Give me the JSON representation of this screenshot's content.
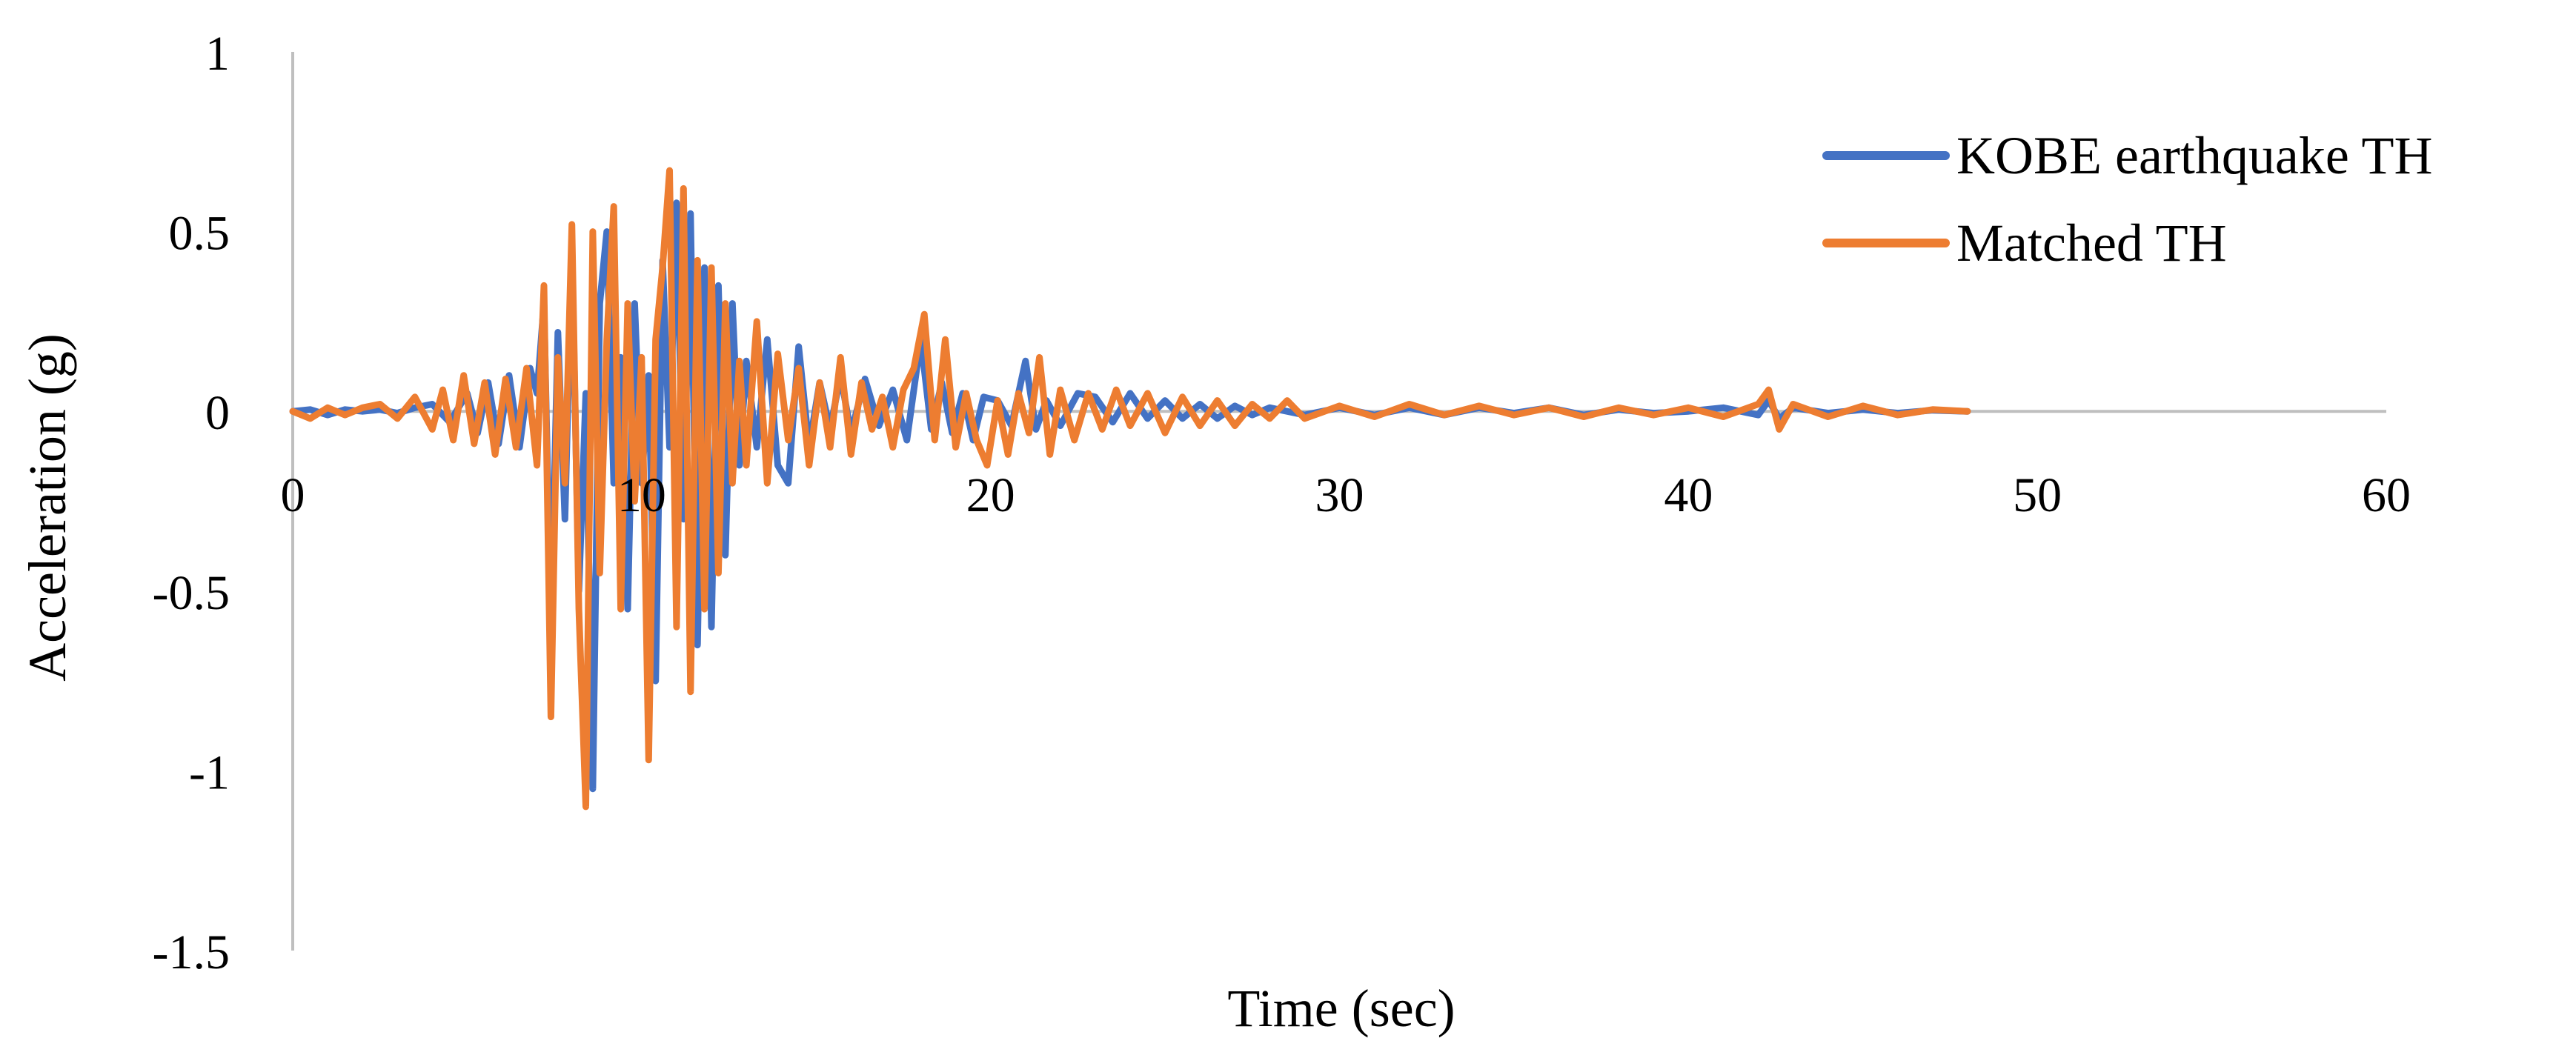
{
  "chart_data": {
    "type": "line",
    "title": "",
    "xlabel": "Time (sec)",
    "ylabel": "Acceleration (g)",
    "xlim": [
      0,
      60
    ],
    "ylim": [
      -1.5,
      1
    ],
    "x_ticks": [
      "0",
      "10",
      "20",
      "30",
      "40",
      "50",
      "60"
    ],
    "y_ticks": [
      "1",
      "0.5",
      "0",
      "-0.5",
      "-1",
      "-1.5"
    ],
    "grid": false,
    "legend_position": "top-right",
    "colors": {
      "kobe": "#4472C4",
      "matched": "#ED7D31",
      "axis": "#bfbfbf"
    },
    "series": [
      {
        "name": "KOBE earthquake TH",
        "x": [
          0,
          0.5,
          1,
          1.5,
          2,
          2.5,
          3,
          3.5,
          4,
          4.5,
          5,
          5.3,
          5.6,
          5.9,
          6.2,
          6.5,
          6.8,
          7.0,
          7.2,
          7.4,
          7.6,
          7.8,
          8.0,
          8.2,
          8.4,
          8.6,
          8.8,
          9.0,
          9.2,
          9.4,
          9.6,
          9.8,
          10.0,
          10.2,
          10.4,
          10.6,
          10.8,
          11.0,
          11.2,
          11.4,
          11.6,
          11.8,
          12.0,
          12.2,
          12.4,
          12.6,
          12.8,
          13.0,
          13.3,
          13.6,
          13.9,
          14.2,
          14.5,
          14.8,
          15.1,
          15.4,
          15.7,
          16.0,
          16.4,
          16.8,
          17.2,
          17.6,
          18.0,
          18.3,
          18.6,
          18.9,
          19.2,
          19.5,
          19.8,
          20.2,
          20.6,
          21.0,
          21.3,
          21.6,
          22.0,
          22.5,
          23,
          23.5,
          24,
          24.5,
          25,
          25.5,
          26,
          26.5,
          27,
          27.5,
          28,
          29,
          30,
          31,
          32,
          33,
          34,
          35,
          36,
          37,
          38,
          39,
          40,
          41,
          42,
          42.3,
          42.6,
          43,
          44,
          45,
          46,
          47,
          48
        ],
        "y": [
          0,
          0.005,
          -0.01,
          0.005,
          0,
          0.005,
          -0.005,
          0.01,
          0.02,
          -0.03,
          0.05,
          -0.06,
          0.08,
          -0.09,
          0.1,
          -0.1,
          0.12,
          0.05,
          0.3,
          -0.6,
          0.22,
          -0.3,
          0.45,
          -0.5,
          0.05,
          -1.05,
          0.3,
          0.5,
          -0.2,
          0.15,
          -0.55,
          0.3,
          -0.2,
          0.1,
          -0.75,
          0.42,
          -0.1,
          0.58,
          -0.3,
          0.55,
          -0.65,
          0.4,
          -0.6,
          0.35,
          -0.4,
          0.3,
          -0.15,
          0.14,
          -0.1,
          0.2,
          -0.15,
          -0.2,
          0.18,
          -0.1,
          0.08,
          -0.05,
          0.1,
          -0.06,
          0.09,
          -0.04,
          0.06,
          -0.08,
          0.2,
          -0.05,
          0.08,
          -0.06,
          0.05,
          -0.08,
          0.04,
          0.03,
          -0.04,
          0.14,
          -0.05,
          0.03,
          -0.04,
          0.05,
          0.04,
          -0.03,
          0.05,
          -0.02,
          0.03,
          -0.02,
          0.02,
          -0.02,
          0.015,
          -0.01,
          0.01,
          -0.01,
          0.01,
          -0.01,
          0.01,
          -0.01,
          0.01,
          -0.005,
          0.01,
          -0.01,
          0.005,
          -0.005,
          0,
          0.01,
          -0.01,
          0.03,
          -0.02,
          0.01,
          -0.005,
          0.005,
          -0.005,
          0.003,
          0
        ]
      },
      {
        "name": "Matched TH",
        "x": [
          0,
          0.5,
          1,
          1.5,
          2,
          2.5,
          3,
          3.5,
          4,
          4.3,
          4.6,
          4.9,
          5.2,
          5.5,
          5.8,
          6.1,
          6.4,
          6.7,
          7.0,
          7.2,
          7.4,
          7.6,
          7.8,
          8.0,
          8.2,
          8.4,
          8.6,
          8.8,
          9.0,
          9.2,
          9.4,
          9.6,
          9.8,
          10.0,
          10.2,
          10.4,
          10.6,
          10.8,
          11.0,
          11.2,
          11.4,
          11.6,
          11.8,
          12.0,
          12.2,
          12.4,
          12.6,
          12.8,
          13.0,
          13.3,
          13.6,
          13.9,
          14.2,
          14.5,
          14.8,
          15.1,
          15.4,
          15.7,
          16.0,
          16.3,
          16.6,
          16.9,
          17.2,
          17.5,
          17.8,
          18.1,
          18.4,
          18.7,
          19.0,
          19.3,
          19.6,
          19.9,
          20.2,
          20.5,
          20.8,
          21.1,
          21.4,
          21.7,
          22.0,
          22.4,
          22.8,
          23.2,
          23.6,
          24.0,
          24.5,
          25,
          25.5,
          26,
          26.5,
          27,
          27.5,
          28,
          28.5,
          29,
          30,
          31,
          32,
          33,
          34,
          35,
          36,
          37,
          38,
          39,
          40,
          41,
          42,
          42.3,
          42.6,
          43,
          44,
          45,
          46,
          47,
          48
        ],
        "y": [
          0,
          -0.02,
          0.01,
          -0.01,
          0.01,
          0.02,
          -0.02,
          0.04,
          -0.05,
          0.06,
          -0.08,
          0.1,
          -0.09,
          0.08,
          -0.12,
          0.09,
          -0.1,
          0.12,
          -0.15,
          0.35,
          -0.85,
          0.15,
          -0.2,
          0.52,
          -0.55,
          -1.1,
          0.5,
          -0.45,
          0.2,
          0.57,
          -0.55,
          0.3,
          -0.25,
          0.15,
          -0.97,
          0.2,
          0.4,
          0.67,
          -0.6,
          0.62,
          -0.78,
          0.42,
          -0.55,
          0.4,
          -0.45,
          0.3,
          -0.2,
          0.14,
          -0.15,
          0.25,
          -0.2,
          0.16,
          -0.08,
          0.12,
          -0.15,
          0.08,
          -0.1,
          0.15,
          -0.12,
          0.08,
          -0.05,
          0.04,
          -0.1,
          0.06,
          0.12,
          0.27,
          -0.08,
          0.2,
          -0.1,
          0.05,
          -0.08,
          -0.15,
          0.03,
          -0.12,
          0.05,
          -0.06,
          0.15,
          -0.12,
          0.06,
          -0.08,
          0.05,
          -0.05,
          0.06,
          -0.04,
          0.05,
          -0.06,
          0.04,
          -0.04,
          0.03,
          -0.04,
          0.02,
          -0.02,
          0.03,
          -0.02,
          0.015,
          -0.015,
          0.02,
          -0.01,
          0.015,
          -0.01,
          0.01,
          -0.015,
          0.01,
          -0.01,
          0.01,
          -0.015,
          0.02,
          0.06,
          -0.05,
          0.02,
          -0.015,
          0.015,
          -0.01,
          0.005,
          0
        ]
      }
    ]
  }
}
